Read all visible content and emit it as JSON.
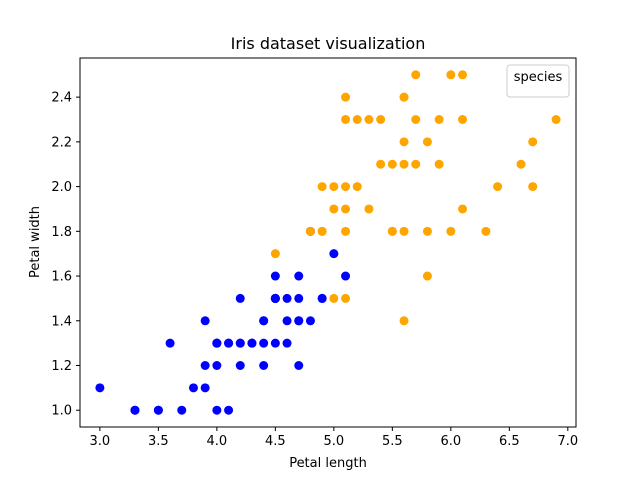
{
  "chart_data": {
    "type": "scatter",
    "title": "Iris dataset visualization",
    "xlabel": "Petal length",
    "ylabel": "Petal width",
    "xlim": [
      2.83,
      7.07
    ],
    "ylim": [
      0.925,
      2.575
    ],
    "xticks": [
      3.0,
      3.5,
      4.0,
      4.5,
      5.0,
      5.5,
      6.0,
      6.5,
      7.0
    ],
    "xtick_labels": [
      "3.0",
      "3.5",
      "4.0",
      "4.5",
      "5.0",
      "5.5",
      "6.0",
      "6.5",
      "7.0"
    ],
    "yticks": [
      1.0,
      1.2,
      1.4,
      1.6,
      1.8,
      2.0,
      2.2,
      2.4
    ],
    "ytick_labels": [
      "1.0",
      "1.2",
      "1.4",
      "1.6",
      "1.8",
      "2.0",
      "2.2",
      "2.4"
    ],
    "grid": false,
    "legend": {
      "title": "species",
      "location": "upper right"
    },
    "series": [
      {
        "color": "#0000ff",
        "points": [
          [
            4.7,
            1.4
          ],
          [
            4.5,
            1.5
          ],
          [
            4.9,
            1.5
          ],
          [
            4.0,
            1.3
          ],
          [
            4.6,
            1.5
          ],
          [
            4.5,
            1.3
          ],
          [
            4.7,
            1.6
          ],
          [
            3.3,
            1.0
          ],
          [
            4.6,
            1.3
          ],
          [
            3.9,
            1.4
          ],
          [
            3.5,
            1.0
          ],
          [
            4.2,
            1.5
          ],
          [
            4.0,
            1.0
          ],
          [
            4.7,
            1.4
          ],
          [
            3.6,
            1.3
          ],
          [
            4.4,
            1.4
          ],
          [
            4.5,
            1.5
          ],
          [
            4.1,
            1.0
          ],
          [
            4.5,
            1.5
          ],
          [
            3.9,
            1.1
          ],
          [
            4.8,
            1.8
          ],
          [
            4.0,
            1.3
          ],
          [
            4.9,
            1.5
          ],
          [
            4.7,
            1.2
          ],
          [
            4.3,
            1.3
          ],
          [
            4.4,
            1.4
          ],
          [
            4.8,
            1.4
          ],
          [
            5.0,
            1.7
          ],
          [
            4.5,
            1.5
          ],
          [
            3.5,
            1.0
          ],
          [
            3.8,
            1.1
          ],
          [
            3.7,
            1.0
          ],
          [
            3.9,
            1.2
          ],
          [
            5.1,
            1.6
          ],
          [
            4.5,
            1.5
          ],
          [
            4.5,
            1.6
          ],
          [
            4.7,
            1.5
          ],
          [
            4.4,
            1.3
          ],
          [
            4.1,
            1.3
          ],
          [
            4.0,
            1.3
          ],
          [
            4.4,
            1.2
          ],
          [
            4.6,
            1.4
          ],
          [
            4.0,
            1.2
          ],
          [
            3.3,
            1.0
          ],
          [
            4.2,
            1.3
          ],
          [
            4.2,
            1.2
          ],
          [
            4.2,
            1.3
          ],
          [
            4.3,
            1.3
          ],
          [
            3.0,
            1.1
          ],
          [
            4.1,
            1.3
          ]
        ]
      },
      {
        "color": "#ffa500",
        "points": [
          [
            6.0,
            2.5
          ],
          [
            5.1,
            1.9
          ],
          [
            5.9,
            2.1
          ],
          [
            5.6,
            1.8
          ],
          [
            5.8,
            2.2
          ],
          [
            6.6,
            2.1
          ],
          [
            4.5,
            1.7
          ],
          [
            6.3,
            1.8
          ],
          [
            5.8,
            1.8
          ],
          [
            6.1,
            2.5
          ],
          [
            5.1,
            2.0
          ],
          [
            5.3,
            1.9
          ],
          [
            5.5,
            2.1
          ],
          [
            5.0,
            2.0
          ],
          [
            5.1,
            2.4
          ],
          [
            5.3,
            2.3
          ],
          [
            5.5,
            1.8
          ],
          [
            6.7,
            2.2
          ],
          [
            6.9,
            2.3
          ],
          [
            5.0,
            1.5
          ],
          [
            5.7,
            2.3
          ],
          [
            4.9,
            2.0
          ],
          [
            6.7,
            2.0
          ],
          [
            4.9,
            1.8
          ],
          [
            5.7,
            2.1
          ],
          [
            6.0,
            1.8
          ],
          [
            4.8,
            1.8
          ],
          [
            4.9,
            1.8
          ],
          [
            5.6,
            2.1
          ],
          [
            5.8,
            1.6
          ],
          [
            6.1,
            1.9
          ],
          [
            6.4,
            2.0
          ],
          [
            5.6,
            2.2
          ],
          [
            5.1,
            1.5
          ],
          [
            5.6,
            1.4
          ],
          [
            6.1,
            2.3
          ],
          [
            5.6,
            2.4
          ],
          [
            5.5,
            1.8
          ],
          [
            4.8,
            1.8
          ],
          [
            5.4,
            2.1
          ],
          [
            5.6,
            2.4
          ],
          [
            5.1,
            2.3
          ],
          [
            5.9,
            2.3
          ],
          [
            5.7,
            2.5
          ],
          [
            5.2,
            2.3
          ],
          [
            5.0,
            1.9
          ],
          [
            5.2,
            2.0
          ],
          [
            5.4,
            2.3
          ],
          [
            5.1,
            1.8
          ]
        ]
      }
    ]
  }
}
